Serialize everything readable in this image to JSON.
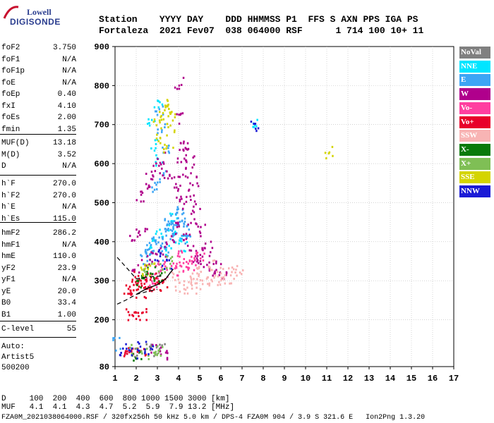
{
  "logo": {
    "top": "Lowell",
    "bottom": "DIGISONDE"
  },
  "header": {
    "line1": "Station    YYYY DAY    DDD HHMMSS P1  FFS S AXN PPS IGA PS",
    "line2": "Fortaleza  2021 Fev07  038 064000 RSF      1 714 100 10+ 11"
  },
  "params_group1": [
    {
      "k": "foF2",
      "v": "3.750"
    },
    {
      "k": "foF1",
      "v": "N/A"
    },
    {
      "k": "foF1p",
      "v": "N/A"
    },
    {
      "k": "foE",
      "v": "N/A"
    },
    {
      "k": "foEp",
      "v": "0.40"
    },
    {
      "k": "fxI",
      "v": "4.10"
    },
    {
      "k": "foEs",
      "v": "2.00"
    },
    {
      "k": "fmin",
      "v": "1.35"
    }
  ],
  "params_group2": [
    {
      "k": "MUF(D)",
      "v": "13.18"
    },
    {
      "k": "M(D)",
      "v": "3.52"
    },
    {
      "k": "D",
      "v": "N/A"
    }
  ],
  "params_group3": [
    {
      "k": "h`F",
      "v": "270.0"
    },
    {
      "k": "h`F2",
      "v": "270.0"
    },
    {
      "k": "h`E",
      "v": "N/A"
    },
    {
      "k": "h`Es",
      "v": "115.0"
    }
  ],
  "params_group4": [
    {
      "k": "hmF2",
      "v": "286.2"
    },
    {
      "k": "hmF1",
      "v": "N/A"
    },
    {
      "k": "hmE",
      "v": "110.0"
    },
    {
      "k": "yF2",
      "v": "23.9"
    },
    {
      "k": "yF1",
      "v": "N/A"
    },
    {
      "k": "yE",
      "v": "20.0"
    },
    {
      "k": "B0",
      "v": "33.4"
    },
    {
      "k": "B1",
      "v": "1.00"
    }
  ],
  "params_group5": [
    {
      "k": "C-level",
      "v": "55"
    }
  ],
  "autoscale": {
    "line1": "Auto:",
    "line2": "Artist5",
    "line3": "500200"
  },
  "legend": [
    {
      "label": "NoVal",
      "bg": "#808080",
      "fg": "#ffffff"
    },
    {
      "label": "NNE",
      "bg": "#00e5ff",
      "fg": "#ffffff"
    },
    {
      "label": "E",
      "bg": "#3da5f5",
      "fg": "#ffffff"
    },
    {
      "label": "W",
      "bg": "#b0008c",
      "fg": "#ffffff"
    },
    {
      "label": "Vo-",
      "bg": "#ff3fa0",
      "fg": "#ffffff"
    },
    {
      "label": "Vo+",
      "bg": "#e8002a",
      "fg": "#ffffff"
    },
    {
      "label": "SSW",
      "bg": "#f8b4b4",
      "fg": "#ffffff"
    },
    {
      "label": "X-",
      "bg": "#0a7a0a",
      "fg": "#ffffff"
    },
    {
      "label": "X+",
      "bg": "#7fbf55",
      "fg": "#ffffff"
    },
    {
      "label": "SSE",
      "bg": "#d4d400",
      "fg": "#ffffff"
    },
    {
      "label": "NNW",
      "bg": "#1a1ad6",
      "fg": "#ffffff"
    }
  ],
  "footer": {
    "d_line": "D     100  200  400  600  800 1000 1500 3000 [km]",
    "muf_line": "MUF   4.1  4.1  4.3  4.7  5.2  5.9  7.9 13.2 [MHz]",
    "info_line": "FZA0M_2021038064000.RSF / 320fx256h 50 kHz 5.0 km / DPS-4 FZA0M 904 / 3.9 S 321.6 E   Ion2Png 1.3.20"
  },
  "chart_data": {
    "type": "scatter",
    "xlim": [
      1,
      17
    ],
    "ylim": [
      80,
      900
    ],
    "x_ticks": [
      "1",
      "2",
      "3",
      "4",
      "5",
      "6",
      "7",
      "8",
      "9",
      "10",
      "11",
      "12",
      "13",
      "14",
      "15",
      "16",
      "17"
    ],
    "y_ticks": [
      "80",
      "200",
      "300",
      "400",
      "500",
      "600",
      "700",
      "800",
      "900"
    ],
    "grid": true,
    "clusters": [
      {
        "name": "NoVal",
        "color": "#808080",
        "points": [
          [
            2.1,
            120
          ],
          [
            2.6,
            125
          ],
          [
            3.1,
            130
          ]
        ]
      },
      {
        "name": "NNE",
        "color": "#00e5ff",
        "points": [
          [
            2.8,
            400
          ],
          [
            3.1,
            420
          ],
          [
            3.4,
            380
          ],
          [
            3.6,
            440
          ],
          [
            3.8,
            470
          ],
          [
            4.0,
            410
          ],
          [
            4.2,
            390
          ],
          [
            2.7,
            700
          ],
          [
            2.9,
            650
          ],
          [
            3.1,
            610
          ],
          [
            3.0,
            760
          ],
          [
            7.5,
            712
          ]
        ]
      },
      {
        "name": "E",
        "color": "#3da5f5",
        "points": [
          [
            2.5,
            380
          ],
          [
            2.8,
            395
          ],
          [
            3.0,
            410
          ],
          [
            3.2,
            390
          ],
          [
            3.4,
            420
          ],
          [
            3.6,
            440
          ],
          [
            3.8,
            460
          ],
          [
            4.0,
            480
          ],
          [
            4.2,
            450
          ],
          [
            4.4,
            430
          ],
          [
            3.3,
            370
          ],
          [
            3.7,
            410
          ],
          [
            3.9,
            430
          ],
          [
            4.1,
            470
          ],
          [
            2.4,
            360
          ],
          [
            2.6,
            370
          ],
          [
            3.5,
            455
          ],
          [
            4.3,
            410
          ],
          [
            3.1,
            735
          ],
          [
            3.2,
            690
          ],
          [
            3.3,
            640
          ],
          [
            2.9,
            540
          ],
          [
            3.2,
            570
          ],
          [
            1.1,
            140
          ]
        ]
      },
      {
        "name": "W",
        "color": "#b0008c",
        "points": [
          [
            2.0,
            330
          ],
          [
            2.4,
            350
          ],
          [
            2.8,
            365
          ],
          [
            3.2,
            380
          ],
          [
            3.6,
            410
          ],
          [
            4.0,
            440
          ],
          [
            4.4,
            410
          ],
          [
            4.6,
            380
          ],
          [
            4.8,
            360
          ],
          [
            5.2,
            350
          ],
          [
            5.6,
            340
          ],
          [
            5.0,
            370
          ],
          [
            4.2,
            500
          ],
          [
            4.0,
            530
          ],
          [
            3.8,
            555
          ],
          [
            3.4,
            580
          ],
          [
            3.0,
            592
          ],
          [
            2.6,
            570
          ],
          [
            2.4,
            540
          ],
          [
            2.2,
            520
          ],
          [
            4.1,
            600
          ],
          [
            4.3,
            640
          ],
          [
            4.1,
            720
          ],
          [
            4.0,
            810
          ],
          [
            4.2,
            650
          ],
          [
            5.0,
            430
          ],
          [
            5.4,
            390
          ],
          [
            4.6,
            460
          ],
          [
            4.8,
            490
          ],
          [
            3.1,
            615
          ],
          [
            1.9,
            420
          ],
          [
            2.3,
            420
          ],
          [
            6.0,
            320
          ],
          [
            5.8,
            330
          ],
          [
            4.7,
            560
          ],
          [
            4.5,
            520
          ],
          [
            4.5,
            610
          ],
          [
            4.4,
            580
          ],
          [
            2.9,
            130
          ],
          [
            3.3,
            110
          ]
        ]
      },
      {
        "name": "Vo-",
        "color": "#ff3fa0",
        "points": [
          [
            2.5,
            310
          ],
          [
            3.0,
            330
          ],
          [
            3.5,
            340
          ],
          [
            4.0,
            350
          ],
          [
            4.5,
            355
          ],
          [
            5.0,
            360
          ],
          [
            3.8,
            330
          ],
          [
            4.2,
            335
          ],
          [
            2.8,
            300
          ],
          [
            3.3,
            320
          ],
          [
            3.9,
            380
          ],
          [
            4.6,
            340
          ]
        ]
      },
      {
        "name": "Vo+",
        "color": "#e8002a",
        "points": [
          [
            1.8,
            280
          ],
          [
            2.0,
            290
          ],
          [
            2.3,
            300
          ],
          [
            2.6,
            295
          ],
          [
            2.9,
            285
          ],
          [
            2.2,
            270
          ],
          [
            2.5,
            275
          ],
          [
            1.6,
            275
          ],
          [
            2.1,
            310
          ],
          [
            2.7,
            305
          ],
          [
            1.7,
            215
          ],
          [
            2.0,
            212
          ],
          [
            2.3,
            218
          ],
          [
            1.8,
            125
          ],
          [
            2.2,
            118
          ],
          [
            1.5,
            110
          ],
          [
            3.2,
            300
          ]
        ]
      },
      {
        "name": "SSW",
        "color": "#f8b4b4",
        "points": [
          [
            4.0,
            290
          ],
          [
            4.5,
            300
          ],
          [
            5.0,
            310
          ],
          [
            5.5,
            315
          ],
          [
            6.0,
            320
          ],
          [
            6.5,
            325
          ],
          [
            6.8,
            315
          ],
          [
            5.2,
            290
          ],
          [
            4.6,
            285
          ],
          [
            4.2,
            282
          ],
          [
            5.8,
            300
          ],
          [
            6.3,
            305
          ],
          [
            4.8,
            330
          ],
          [
            5.6,
            340
          ],
          [
            3.8,
            310
          ]
        ]
      },
      {
        "name": "X-",
        "color": "#0a7a0a",
        "points": [
          [
            2.3,
            318
          ],
          [
            2.7,
            322
          ],
          [
            2.1,
            300
          ],
          [
            3.0,
            315
          ],
          [
            2.0,
            112
          ]
        ]
      },
      {
        "name": "X+",
        "color": "#7fbf55",
        "points": [
          [
            2.5,
            330
          ],
          [
            3.2,
            340
          ],
          [
            3.5,
            350
          ],
          [
            1.9,
            125
          ],
          [
            2.4,
            115
          ],
          [
            3.0,
            118
          ],
          [
            2.8,
            130
          ]
        ]
      },
      {
        "name": "SSE",
        "color": "#d4d400",
        "points": [
          [
            3.0,
            700
          ],
          [
            3.2,
            720
          ],
          [
            3.4,
            740
          ],
          [
            3.6,
            690
          ],
          [
            3.8,
            720
          ],
          [
            3.1,
            670
          ],
          [
            3.3,
            760
          ],
          [
            11.1,
            630
          ],
          [
            3.5,
            640
          ],
          [
            2.4,
            320
          ],
          [
            2.6,
            340
          ]
        ]
      },
      {
        "name": "NNW",
        "color": "#1a1ad6",
        "points": [
          [
            1.4,
            125
          ],
          [
            1.8,
            115
          ],
          [
            2.2,
            130
          ],
          [
            2.6,
            120
          ],
          [
            7.5,
            700
          ],
          [
            3.0,
            365
          ],
          [
            3.4,
            345
          ]
        ]
      }
    ],
    "profile_dashed": [
      [
        1.1,
        240
      ],
      [
        1.5,
        250
      ],
      [
        2.0,
        265
      ],
      [
        2.5,
        272
      ],
      [
        3.0,
        278
      ]
    ],
    "profile_solid": [
      [
        2.0,
        265
      ],
      [
        2.5,
        280
      ],
      [
        3.0,
        290
      ],
      [
        3.4,
        305
      ],
      [
        3.6,
        320
      ],
      [
        3.75,
        330
      ]
    ],
    "profile_dashed_upper": [
      [
        1.1,
        360
      ],
      [
        1.6,
        330
      ],
      [
        2.0,
        305
      ],
      [
        2.6,
        310
      ],
      [
        3.2,
        312
      ]
    ]
  }
}
